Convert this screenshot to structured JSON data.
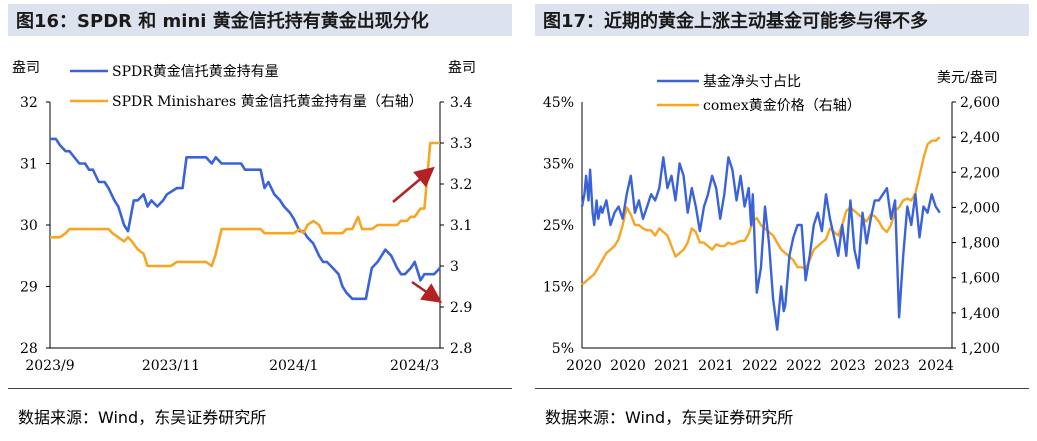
{
  "chart_data": [
    {
      "type": "line",
      "title": "图16：SPDR 和 mini 黄金信托持有黄金出现分化",
      "ylabel_left": "盎司",
      "ylabel_right": "盎司",
      "ylim_left": [
        28,
        32
      ],
      "ylim_right": [
        2.8,
        3.4
      ],
      "y_ticks_left": [
        "28",
        "29",
        "30",
        "31",
        "32"
      ],
      "y_ticks_right": [
        "2.8",
        "2.9",
        "3",
        "3.1",
        "3.2",
        "3.3",
        "3.4"
      ],
      "x_tick_labels": [
        "2023/9",
        "2023/11",
        "2024/1",
        "2024/3"
      ],
      "legend": [
        "SPDR黄金信托黄金持有量",
        "SPDR Minishares 黄金信托黄金持有量（右轴）"
      ],
      "colors": [
        "#3b63d9",
        "#f5a623",
        "#b22222"
      ],
      "series": [
        {
          "name": "SPDR黄金信托黄金持有量",
          "axis": "left",
          "x": [
            0,
            3,
            5,
            8,
            10,
            15,
            18,
            20,
            22,
            25,
            28,
            30,
            33,
            35,
            38,
            40,
            43,
            45,
            48,
            50,
            52,
            55,
            58,
            60,
            65,
            68,
            70,
            72,
            75,
            78,
            80,
            83,
            85,
            88,
            90,
            92,
            95,
            98,
            100,
            103,
            105,
            108,
            110,
            112,
            115,
            118,
            120,
            123,
            125,
            128,
            130,
            132,
            135,
            138,
            140,
            142,
            145,
            148,
            150,
            152,
            155,
            158,
            160,
            162,
            165,
            168,
            170,
            172,
            175,
            178,
            180,
            182,
            185,
            187,
            190,
            192,
            195,
            197,
            200
          ],
          "values": [
            31.4,
            31.4,
            31.3,
            31.2,
            31.2,
            31.0,
            31.0,
            30.9,
            30.9,
            30.7,
            30.7,
            30.6,
            30.4,
            30.3,
            30.0,
            29.9,
            30.4,
            30.4,
            30.5,
            30.3,
            30.4,
            30.3,
            30.4,
            30.5,
            30.6,
            30.6,
            31.1,
            31.1,
            31.1,
            31.1,
            31.1,
            31.0,
            31.1,
            31.0,
            31.0,
            31.0,
            31.0,
            31.0,
            30.9,
            30.9,
            30.9,
            30.9,
            30.6,
            30.7,
            30.5,
            30.4,
            30.3,
            30.2,
            30.1,
            29.9,
            29.9,
            29.8,
            29.7,
            29.5,
            29.4,
            29.4,
            29.3,
            29.2,
            29.0,
            28.9,
            28.8,
            28.8,
            28.8,
            28.8,
            29.3,
            29.4,
            29.5,
            29.6,
            29.5,
            29.3,
            29.2,
            29.2,
            29.3,
            29.4,
            29.1,
            29.2,
            29.2,
            29.2,
            29.3
          ]
        },
        {
          "name": "SPDR Minishares 黄金信托黄金持有量（右轴）",
          "axis": "right",
          "x": [
            0,
            3,
            5,
            8,
            10,
            15,
            20,
            25,
            30,
            32,
            35,
            38,
            40,
            42,
            45,
            48,
            50,
            52,
            55,
            58,
            60,
            62,
            65,
            68,
            70,
            72,
            75,
            78,
            80,
            83,
            85,
            88,
            90,
            92,
            95,
            98,
            100,
            103,
            105,
            108,
            110,
            112,
            115,
            118,
            120,
            125,
            128,
            130,
            132,
            135,
            138,
            140,
            142,
            145,
            148,
            150,
            152,
            155,
            158,
            160,
            162,
            165,
            168,
            170,
            172,
            175,
            178,
            180,
            183,
            185,
            187,
            190,
            192,
            195,
            197,
            200
          ],
          "values": [
            3.07,
            3.07,
            3.07,
            3.08,
            3.09,
            3.09,
            3.09,
            3.09,
            3.09,
            3.08,
            3.07,
            3.06,
            3.07,
            3.06,
            3.04,
            3.03,
            3.0,
            3.0,
            3.0,
            3.0,
            3.0,
            3.0,
            3.01,
            3.01,
            3.01,
            3.01,
            3.01,
            3.01,
            3.01,
            3.0,
            3.03,
            3.09,
            3.09,
            3.09,
            3.09,
            3.09,
            3.09,
            3.09,
            3.09,
            3.09,
            3.08,
            3.08,
            3.08,
            3.08,
            3.08,
            3.08,
            3.09,
            3.08,
            3.1,
            3.11,
            3.1,
            3.08,
            3.08,
            3.08,
            3.08,
            3.08,
            3.09,
            3.09,
            3.12,
            3.09,
            3.09,
            3.09,
            3.1,
            3.1,
            3.1,
            3.1,
            3.1,
            3.11,
            3.11,
            3.12,
            3.12,
            3.14,
            3.14,
            3.3,
            3.3,
            3.3
          ]
        }
      ],
      "annotations": [
        "red arrow up near SPDR Minishares line end",
        "red arrow down near SPDR line end"
      ]
    },
    {
      "type": "line",
      "title": "图17：近期的黄金上涨主动基金可能参与得不多",
      "ylabel_right": "美元/盎司",
      "ylim_left": [
        5,
        45
      ],
      "ylim_right": [
        1200,
        2600
      ],
      "y_ticks_left": [
        "5%",
        "15%",
        "25%",
        "35%",
        "45%"
      ],
      "y_ticks_right": [
        "1,200",
        "1,400",
        "1,600",
        "1,800",
        "2,000",
        "2,200",
        "2,400",
        "2,600"
      ],
      "x_tick_labels": [
        "2020",
        "2020",
        "2021",
        "2021",
        "2022",
        "2022",
        "2023",
        "2023",
        "2024"
      ],
      "legend": [
        "基金净头寸占比",
        "comex黄金价格（右轴）"
      ],
      "colors": [
        "#3b63d9",
        "#f5a623"
      ],
      "series": [
        {
          "name": "基金净头寸占比",
          "axis": "left",
          "x": [
            2020.0,
            2020.03,
            2020.05,
            2020.08,
            2020.1,
            2020.13,
            2020.15,
            2020.18,
            2020.2,
            2020.23,
            2020.25,
            2020.3,
            2020.35,
            2020.4,
            2020.45,
            2020.5,
            2020.55,
            2020.6,
            2020.65,
            2020.7,
            2020.75,
            2020.8,
            2020.85,
            2020.9,
            2020.95,
            2021.0,
            2021.05,
            2021.1,
            2021.15,
            2021.2,
            2021.25,
            2021.3,
            2021.35,
            2021.4,
            2021.45,
            2021.5,
            2021.55,
            2021.6,
            2021.65,
            2021.7,
            2021.75,
            2021.8,
            2021.85,
            2021.9,
            2021.95,
            2022.0,
            2022.05,
            2022.08,
            2022.1,
            2022.13,
            2022.15,
            2022.2,
            2022.25,
            2022.3,
            2022.35,
            2022.4,
            2022.45,
            2022.48,
            2022.5,
            2022.55,
            2022.6,
            2022.65,
            2022.7,
            2022.75,
            2022.8,
            2022.85,
            2022.9,
            2022.95,
            2023.0,
            2023.05,
            2023.1,
            2023.15,
            2023.2,
            2023.25,
            2023.3,
            2023.35,
            2023.4,
            2023.45,
            2023.5,
            2023.55,
            2023.6,
            2023.65,
            2023.7,
            2023.75,
            2023.8,
            2023.85,
            2023.9,
            2023.95,
            2024.0,
            2024.05,
            2024.1,
            2024.15,
            2024.2,
            2024.25,
            2024.3,
            2024.35,
            2024.4
          ],
          "values": [
            28,
            30,
            33,
            29,
            34,
            27,
            25,
            29,
            26,
            28,
            27,
            29,
            25,
            27,
            28,
            26,
            30,
            33,
            27,
            29,
            26,
            28,
            30,
            29,
            31,
            36,
            31,
            33,
            29,
            35,
            33,
            27,
            31,
            28,
            24,
            28,
            30,
            33,
            31,
            26,
            30,
            36,
            34,
            29,
            33,
            28,
            31,
            25,
            30,
            20,
            14,
            18,
            28,
            22,
            13,
            8,
            15,
            11,
            12,
            20,
            23,
            25,
            25,
            16,
            20,
            25,
            27,
            24,
            30,
            26,
            23,
            20,
            25,
            20,
            29,
            21,
            18,
            27,
            22,
            26,
            29,
            29,
            30,
            31,
            26,
            29,
            10,
            20,
            28,
            25,
            30,
            23,
            28,
            27,
            30,
            28,
            27
          ]
        },
        {
          "name": "comex黄金价格（右轴）",
          "axis": "right",
          "x": [
            2020.0,
            2020.05,
            2020.1,
            2020.15,
            2020.2,
            2020.25,
            2020.3,
            2020.35,
            2020.4,
            2020.45,
            2020.5,
            2020.55,
            2020.6,
            2020.65,
            2020.7,
            2020.75,
            2020.8,
            2020.85,
            2020.9,
            2020.95,
            2021.0,
            2021.05,
            2021.1,
            2021.15,
            2021.2,
            2021.25,
            2021.3,
            2021.35,
            2021.4,
            2021.45,
            2021.5,
            2021.55,
            2021.6,
            2021.65,
            2021.7,
            2021.75,
            2021.8,
            2021.85,
            2021.9,
            2021.95,
            2022.0,
            2022.05,
            2022.1,
            2022.15,
            2022.2,
            2022.25,
            2022.3,
            2022.35,
            2022.4,
            2022.45,
            2022.5,
            2022.55,
            2022.6,
            2022.65,
            2022.7,
            2022.75,
            2022.8,
            2022.85,
            2022.9,
            2022.95,
            2023.0,
            2023.05,
            2023.1,
            2023.15,
            2023.2,
            2023.25,
            2023.3,
            2023.35,
            2023.4,
            2023.45,
            2023.5,
            2023.55,
            2023.6,
            2023.65,
            2023.7,
            2023.75,
            2023.8,
            2023.85,
            2023.9,
            2023.95,
            2024.0,
            2024.05,
            2024.1,
            2024.15,
            2024.2,
            2024.25,
            2024.3,
            2024.35,
            2024.4
          ],
          "values": [
            1560,
            1580,
            1600,
            1620,
            1660,
            1700,
            1740,
            1760,
            1780,
            1820,
            1900,
            2000,
            1960,
            1900,
            1900,
            1880,
            1870,
            1870,
            1840,
            1880,
            1860,
            1840,
            1780,
            1720,
            1740,
            1760,
            1800,
            1880,
            1860,
            1800,
            1800,
            1780,
            1760,
            1790,
            1780,
            1780,
            1800,
            1790,
            1800,
            1810,
            1810,
            1850,
            1920,
            1940,
            1900,
            1880,
            1860,
            1840,
            1800,
            1760,
            1740,
            1720,
            1700,
            1660,
            1660,
            1650,
            1700,
            1760,
            1780,
            1800,
            1820,
            1880,
            1860,
            1840,
            1900,
            1980,
            2000,
            1980,
            1960,
            1940,
            1920,
            1960,
            1950,
            1920,
            1880,
            1860,
            1900,
            1980,
            2000,
            2040,
            2050,
            2040,
            2080,
            2180,
            2280,
            2360,
            2380,
            2380,
            2400
          ]
        }
      ]
    }
  ],
  "source_text": "数据来源：Wind，东吴证券研究所"
}
